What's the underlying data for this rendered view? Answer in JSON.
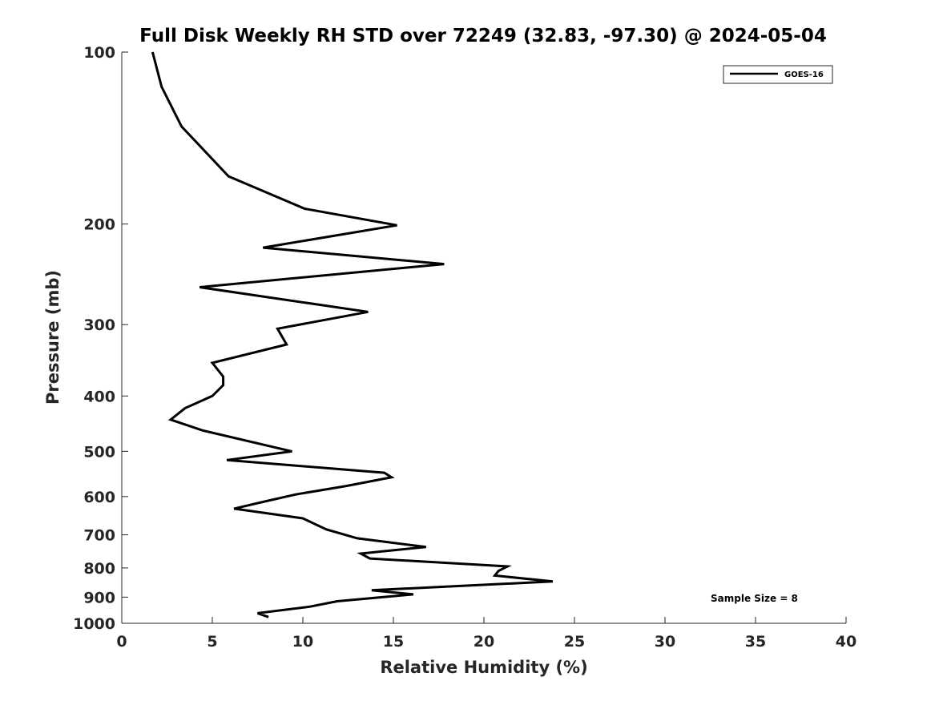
{
  "chart_data": {
    "type": "line",
    "title": "Full Disk Weekly RH STD over 72249 (32.83, -97.30) @ 2024-05-04",
    "xlabel": "Relative Humidity (%)",
    "ylabel": "Pressure (mb)",
    "xlim": [
      0,
      40
    ],
    "ylim": [
      1000,
      100
    ],
    "yscale": "log",
    "grid": false,
    "legend_position": "top-right",
    "x_ticks": [
      0,
      5,
      10,
      15,
      20,
      25,
      30,
      35,
      40
    ],
    "x_tick_labels": [
      "0",
      "5",
      "10",
      "15",
      "20",
      "25",
      "30",
      "35",
      "40"
    ],
    "y_ticks": [
      100,
      200,
      300,
      400,
      500,
      600,
      700,
      800,
      900,
      1000
    ],
    "y_tick_labels": [
      "100",
      "200",
      "300",
      "400",
      "500",
      "600",
      "700",
      "800",
      "900",
      "1000"
    ],
    "series": [
      {
        "name": "GOES-16",
        "color": "#000000",
        "x": [
          1.7,
          2.2,
          3.3,
          5.9,
          10.1,
          15.2,
          7.8,
          17.8,
          4.3,
          13.6,
          8.6,
          9.1,
          5.0,
          5.6,
          5.6,
          5.0,
          3.5,
          2.7,
          4.5,
          9.4,
          5.8,
          14.5,
          14.9,
          12.4,
          9.6,
          7.6,
          6.2,
          10.0,
          11.3,
          13.0,
          16.8,
          13.2,
          13.7,
          21.3,
          20.8,
          20.6,
          23.8,
          13.8,
          16.1,
          11.9,
          10.4,
          7.5,
          8.1
        ],
        "y": [
          100,
          115,
          135,
          165,
          188,
          201,
          220,
          235,
          258,
          285,
          305,
          325,
          350,
          370,
          383,
          400,
          420,
          440,
          460,
          500,
          518,
          545,
          555,
          575,
          595,
          615,
          630,
          655,
          685,
          710,
          735,
          755,
          770,
          795,
          810,
          825,
          845,
          875,
          890,
          915,
          935,
          960,
          975
        ]
      }
    ],
    "annotations": [
      "Sample Size = 8"
    ]
  }
}
